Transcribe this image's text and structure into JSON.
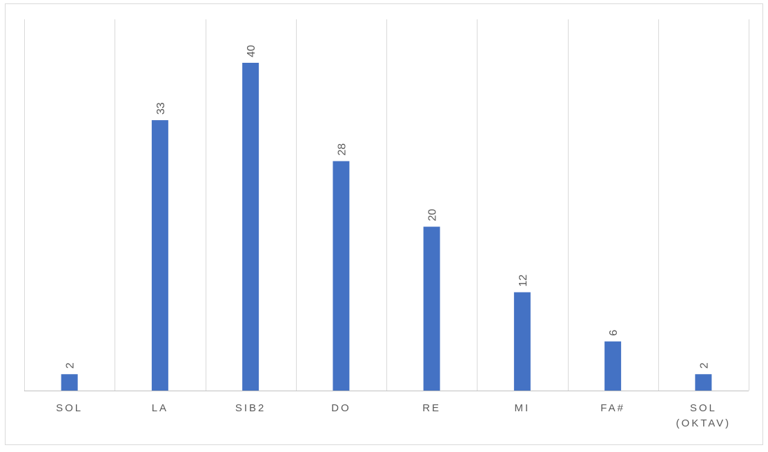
{
  "chart_data": {
    "type": "bar",
    "categories": [
      "SOL",
      "LA",
      "SIB2",
      "DO",
      "RE",
      "MI",
      "FA#",
      "SOL (OKTAV)"
    ],
    "category_lines": [
      [
        "SOL"
      ],
      [
        "LA"
      ],
      [
        "SIB2"
      ],
      [
        "DO"
      ],
      [
        "RE"
      ],
      [
        "MI"
      ],
      [
        "FA#"
      ],
      [
        "SOL",
        "(OKTAV)"
      ]
    ],
    "values": [
      2,
      33,
      40,
      28,
      20,
      12,
      6,
      2
    ],
    "data_labels": [
      "2",
      "33",
      "40",
      "28",
      "20",
      "12",
      "6",
      "2"
    ],
    "title": "",
    "xlabel": "",
    "ylabel": "",
    "ylim": [
      0,
      40
    ],
    "grid": "vertical category separators",
    "legend": "none",
    "colors": {
      "bar": "#4472C4",
      "grid": "#D9D9D9",
      "axis": "#BFBFBF",
      "label": "#595959",
      "border": "#D9D9D9"
    }
  }
}
